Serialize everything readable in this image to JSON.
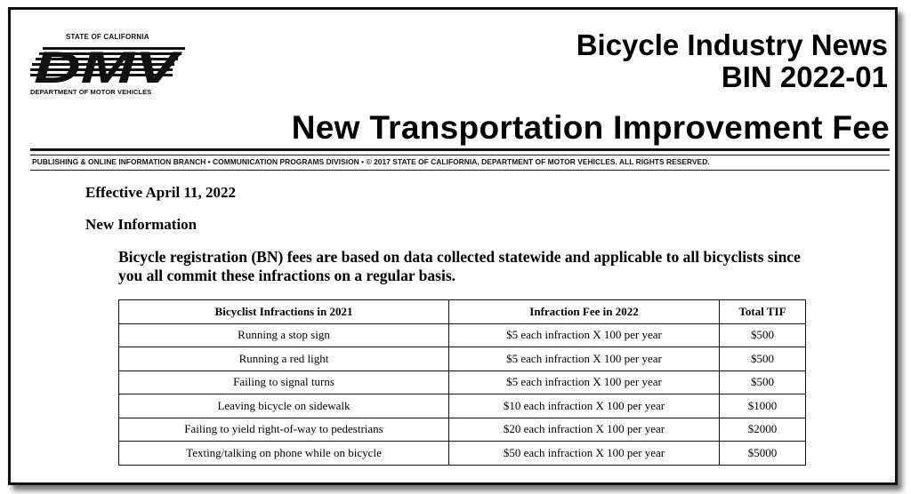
{
  "logo": {
    "state_text": "STATE OF CALIFORNIA",
    "wordmark": "DMV",
    "department_text": "DEPARTMENT OF MOTOR VEHICLES"
  },
  "header": {
    "title_line1": "Bicycle Industry News",
    "title_line2": "BIN 2022-01",
    "headline": "New Transportation Improvement Fee",
    "division_text": "PUBLISHING & ONLINE INFORMATION BRANCH • COMMUNICATION PROGRAMS DIVISION • © 2017 STATE OF CALIFORNIA, DEPARTMENT OF MOTOR VEHICLES. ALL RIGHTS RESERVED."
  },
  "body": {
    "effective": "Effective April 11, 2022",
    "section_heading": "New Information",
    "paragraph": "Bicycle registration (BN) fees are based on data collected statewide and applicable to all bicyclists since you all commit these infractions on a regular basis."
  },
  "table": {
    "headers": [
      "Bicyclist Infractions in 2021",
      "Infraction Fee in 2022",
      "Total TIF"
    ],
    "rows": [
      [
        "Running a stop sign",
        "$5 each infraction X 100 per year",
        "$500"
      ],
      [
        "Running a red light",
        "$5 each infraction X 100 per year",
        "$500"
      ],
      [
        "Failing to signal turns",
        "$5 each infraction X 100 per year",
        "$500"
      ],
      [
        "Leaving bicycle on sidewalk",
        "$10 each infraction X 100 per year",
        "$1000"
      ],
      [
        "Failing to yield right-of-way to pedestrians",
        "$20 each infraction X 100 per year",
        "$2000"
      ],
      [
        "Texting/talking on phone while on bicycle",
        "$50 each infraction X 100 per year",
        "$5000"
      ]
    ]
  },
  "colors": {
    "text": "#000000",
    "frame": "#111111",
    "background": "#ffffff"
  }
}
